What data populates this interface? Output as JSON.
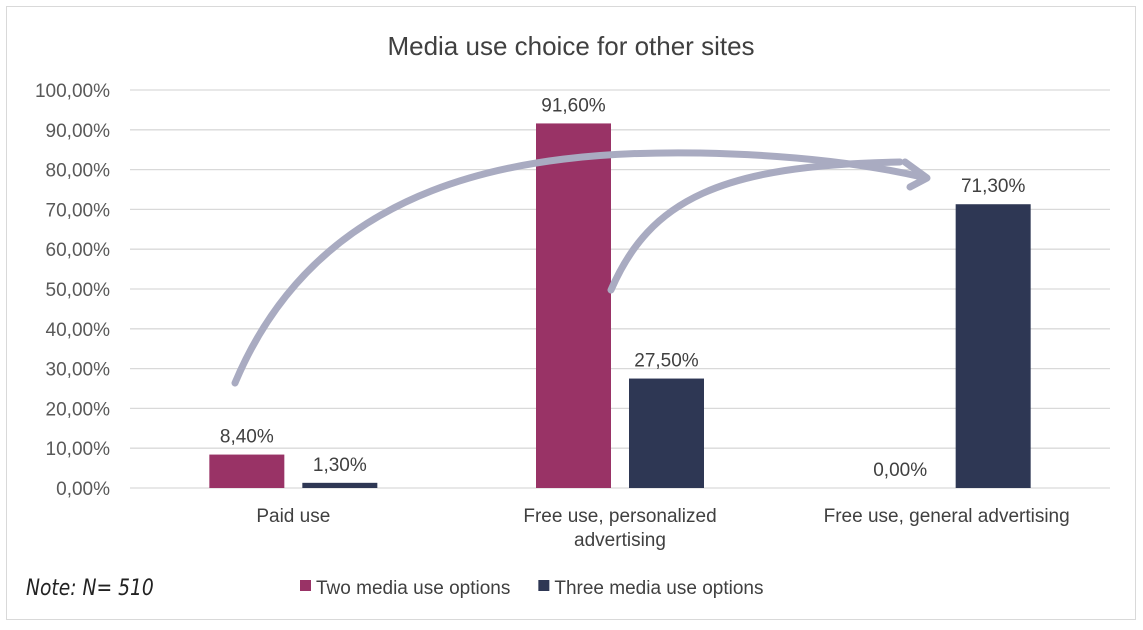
{
  "chart_data": {
    "type": "bar",
    "title": "Media use choice for other sites",
    "categories": [
      "Paid use",
      "Free use, personalized advertising",
      "Free use, general advertising"
    ],
    "series": [
      {
        "name": "Two media use options",
        "color": "#993366",
        "values": [
          8.4,
          91.6,
          0.0
        ],
        "labels": [
          "8,40%",
          "91,60%",
          "0,00%"
        ]
      },
      {
        "name": "Three media use options",
        "color": "#2e3754",
        "values": [
          1.3,
          27.5,
          71.3
        ],
        "labels": [
          "1,30%",
          "27,50%",
          "71,30%"
        ]
      }
    ],
    "ylim": [
      0,
      100
    ],
    "yticks": [
      "0,00%",
      "10,00%",
      "20,00%",
      "30,00%",
      "40,00%",
      "50,00%",
      "60,00%",
      "70,00%",
      "80,00%",
      "90,00%",
      "100,00%"
    ],
    "grid": true,
    "legend": "bottom",
    "annotation_arrow_color": "#a9abc1"
  },
  "note": "Note: N= 510"
}
